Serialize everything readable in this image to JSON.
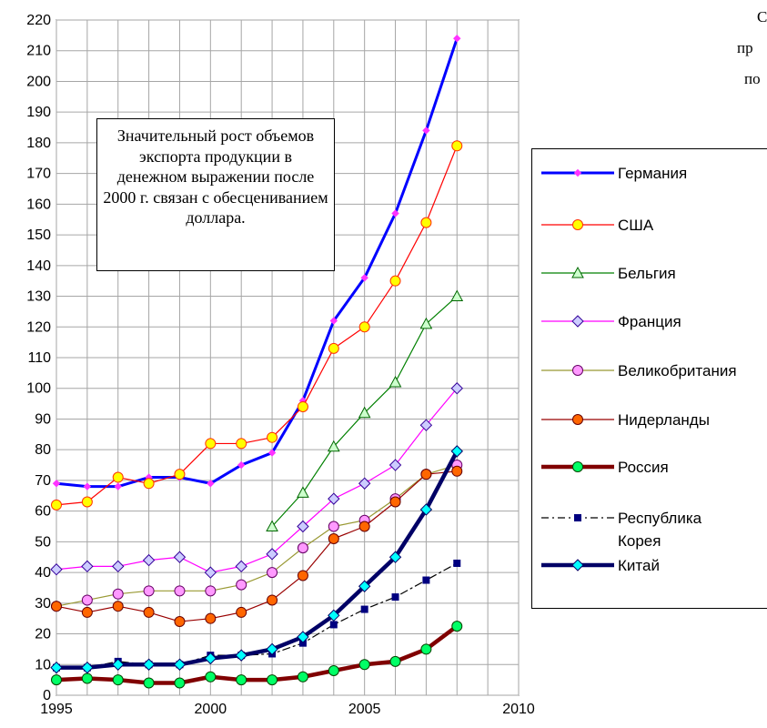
{
  "annotation": {
    "text": "Значительный рост объемов экспорта продукции в денежном выражении после 2000 г. связан с обесцениванием доллара."
  },
  "side_text": [
    "С",
    "пр",
    "по"
  ],
  "chart_data": {
    "type": "line",
    "xlim": [
      1995,
      2010
    ],
    "ylim": [
      0,
      220
    ],
    "x_ticks": [
      1995,
      2000,
      2005,
      2010
    ],
    "y_ticks": [
      0,
      10,
      20,
      30,
      40,
      50,
      60,
      70,
      80,
      90,
      100,
      110,
      120,
      130,
      140,
      150,
      160,
      170,
      180,
      190,
      200,
      210,
      220
    ],
    "grid": true,
    "legend_position": "right",
    "series": [
      {
        "name": "Германия",
        "color": "#0000ff",
        "width": 3,
        "marker": "diamond-small",
        "marker_fill": "#ff33ff",
        "marker_stroke": "#ff33ff",
        "dash": "",
        "x": [
          1995,
          1996,
          1997,
          1998,
          1999,
          2000,
          2001,
          2002,
          2003,
          2004,
          2005,
          2006,
          2007,
          2008
        ],
        "y": [
          69,
          68,
          68,
          71,
          71,
          69,
          75,
          79,
          96,
          122,
          136,
          157,
          184,
          214
        ]
      },
      {
        "name": "США",
        "color": "#ff0000",
        "width": 1.2,
        "marker": "circle",
        "marker_fill": "#ffff00",
        "marker_stroke": "#ff3300",
        "dash": "",
        "x": [
          1995,
          1996,
          1997,
          1998,
          1999,
          2000,
          2001,
          2002,
          2003,
          2004,
          2005,
          2006,
          2007,
          2008
        ],
        "y": [
          62,
          63,
          71,
          69,
          72,
          82,
          82,
          84,
          94,
          113,
          120,
          135,
          154,
          179
        ]
      },
      {
        "name": "Бельгия",
        "color": "#008000",
        "width": 1.2,
        "marker": "triangle",
        "marker_fill": "#ccffcc",
        "marker_stroke": "#006600",
        "dash": "",
        "x": [
          2002,
          2003,
          2004,
          2005,
          2006,
          2007,
          2008
        ],
        "y": [
          55,
          66,
          81,
          92,
          102,
          121,
          130
        ]
      },
      {
        "name": "Франция",
        "color": "#ff00ff",
        "width": 1.2,
        "marker": "diamond",
        "marker_fill": "#ccccff",
        "marker_stroke": "#330099",
        "dash": "",
        "x": [
          1995,
          1996,
          1997,
          1998,
          1999,
          2000,
          2001,
          2002,
          2003,
          2004,
          2005,
          2006,
          2007,
          2008
        ],
        "y": [
          41,
          42,
          42,
          44,
          45,
          40,
          42,
          46,
          55,
          64,
          69,
          75,
          88,
          100
        ]
      },
      {
        "name": "Великобритания",
        "color": "#999933",
        "width": 1.2,
        "marker": "circle",
        "marker_fill": "#ff99ff",
        "marker_stroke": "#660066",
        "dash": "",
        "x": [
          1995,
          1996,
          1997,
          1998,
          1999,
          2000,
          2001,
          2002,
          2003,
          2004,
          2005,
          2006,
          2007,
          2008
        ],
        "y": [
          29,
          31,
          33,
          34,
          34,
          34,
          36,
          40,
          48,
          55,
          57,
          64,
          72,
          75
        ]
      },
      {
        "name": "Нидерланды",
        "color": "#990000",
        "width": 1.2,
        "marker": "circle",
        "marker_fill": "#ff6600",
        "marker_stroke": "#660000",
        "dash": "",
        "x": [
          1995,
          1996,
          1997,
          1998,
          1999,
          2000,
          2001,
          2002,
          2003,
          2004,
          2005,
          2006,
          2007,
          2008
        ],
        "y": [
          29,
          27,
          29,
          27,
          24,
          25,
          27,
          31,
          39,
          51,
          55,
          63,
          72,
          73
        ]
      },
      {
        "name": "Россия",
        "color": "#800000",
        "width": 4.5,
        "marker": "circle",
        "marker_fill": "#00ff66",
        "marker_stroke": "#004400",
        "dash": "",
        "x": [
          1995,
          1996,
          1997,
          1998,
          1999,
          2000,
          2001,
          2002,
          2003,
          2004,
          2005,
          2006,
          2007,
          2008
        ],
        "y": [
          5,
          5.5,
          5,
          4,
          4,
          6,
          5,
          5,
          6,
          8,
          10,
          11,
          15,
          22.5
        ]
      },
      {
        "name": "Республика Корея",
        "color": "#000000",
        "width": 1.2,
        "marker": "square",
        "marker_fill": "#000080",
        "marker_stroke": "#000080",
        "dash": "8,4,2,4",
        "x": [
          1995,
          1996,
          1997,
          1998,
          1999,
          2000,
          2001,
          2002,
          2003,
          2004,
          2005,
          2006,
          2007,
          2008
        ],
        "y": [
          9,
          9,
          11,
          10,
          10,
          13,
          13,
          13.5,
          17,
          23,
          28,
          32,
          37.5,
          43
        ]
      },
      {
        "name": "Китай",
        "color": "#000066",
        "width": 4.5,
        "marker": "diamond",
        "marker_fill": "#00ffff",
        "marker_stroke": "#000066",
        "dash": "",
        "x": [
          1995,
          1996,
          1997,
          1998,
          1999,
          2000,
          2001,
          2002,
          2003,
          2004,
          2005,
          2006,
          2007,
          2008
        ],
        "y": [
          9,
          9,
          10,
          10,
          10,
          12,
          13,
          15,
          19,
          26,
          35.5,
          45,
          60.5,
          79.5
        ]
      }
    ]
  }
}
